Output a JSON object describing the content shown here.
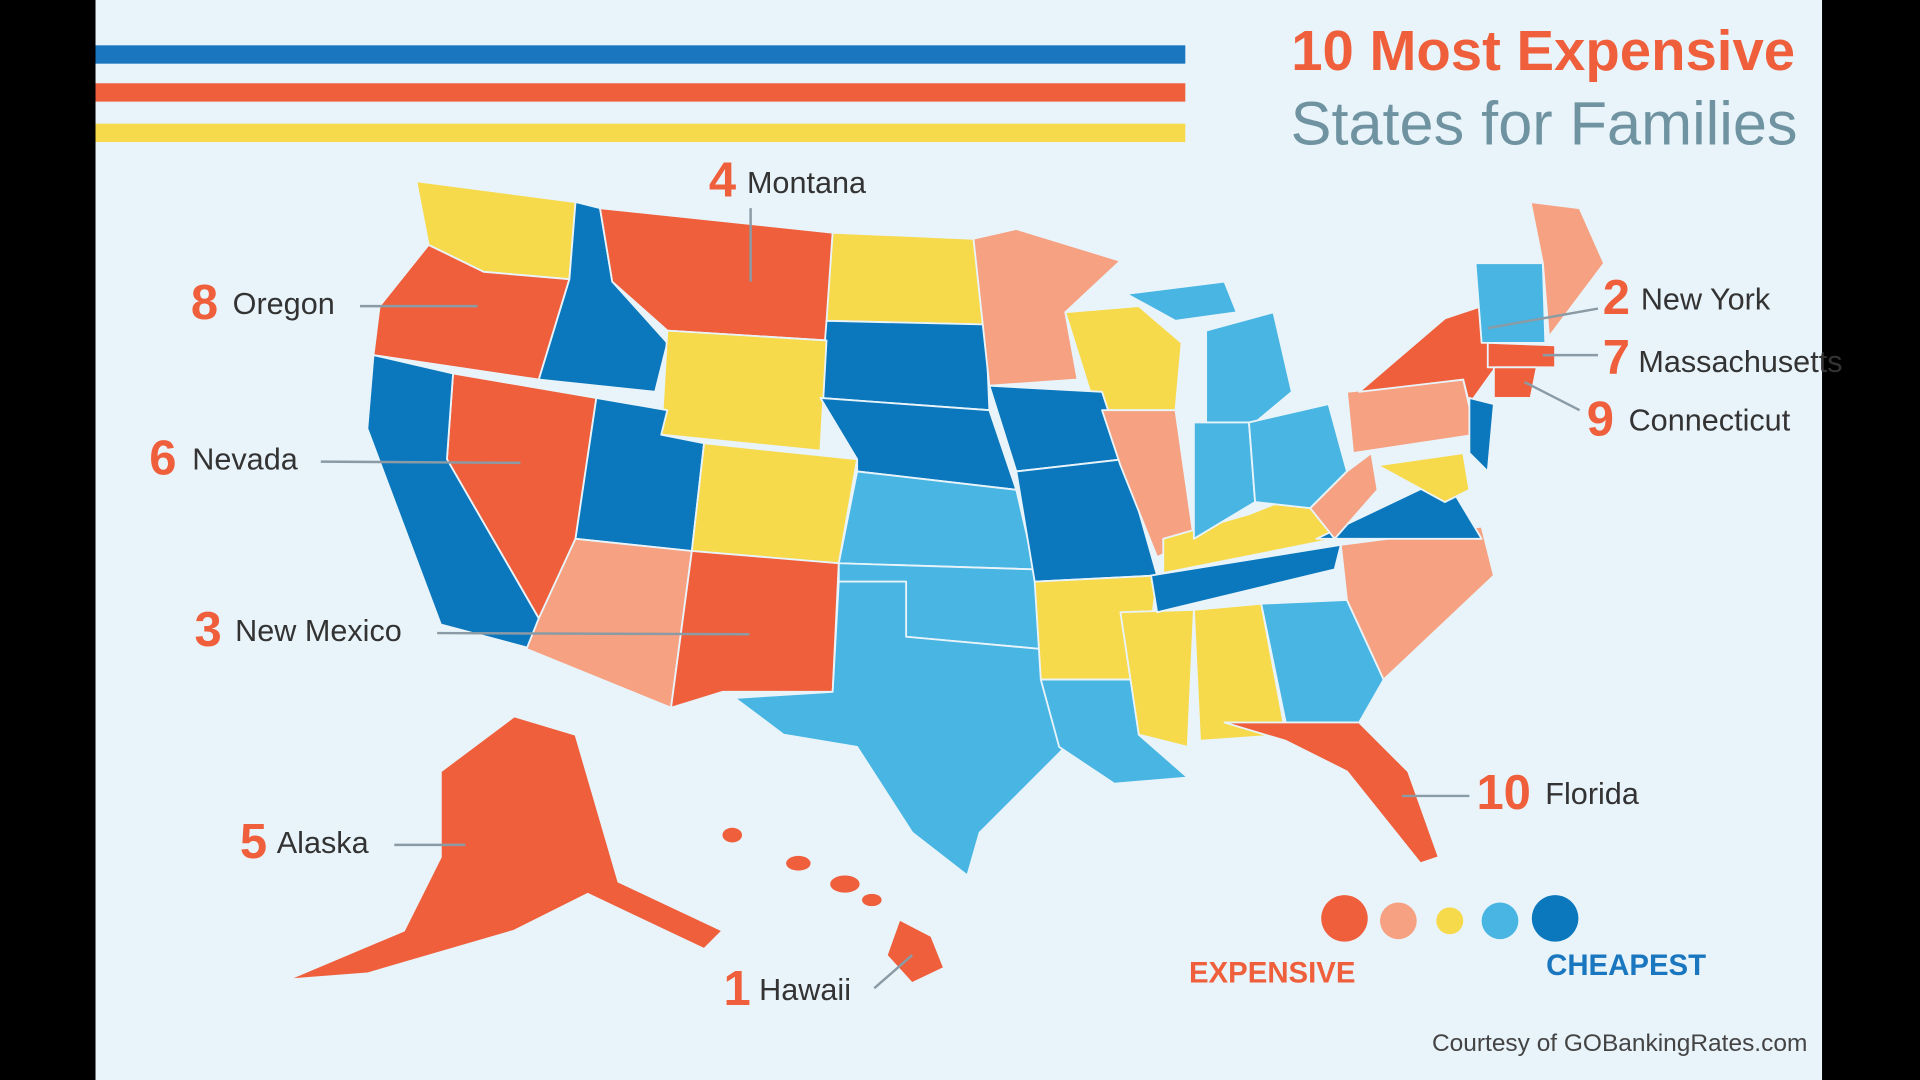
{
  "title": {
    "line1": "10 Most Expensive",
    "line2": "States for Families"
  },
  "labels": [
    {
      "rank": 1,
      "state": "Hawaii"
    },
    {
      "rank": 2,
      "state": "New York"
    },
    {
      "rank": 3,
      "state": "New Mexico"
    },
    {
      "rank": 4,
      "state": "Montana"
    },
    {
      "rank": 5,
      "state": "Alaska"
    },
    {
      "rank": 6,
      "state": "Nevada"
    },
    {
      "rank": 7,
      "state": "Massachusetts"
    },
    {
      "rank": 8,
      "state": "Oregon"
    },
    {
      "rank": 9,
      "state": "Connecticut"
    },
    {
      "rank": 10,
      "state": "Florida"
    }
  ],
  "legend": {
    "expensive": "EXPENSIVE",
    "cheapest": "CHEAPEST"
  },
  "credit": "Courtesy of GOBankingRates.com"
}
